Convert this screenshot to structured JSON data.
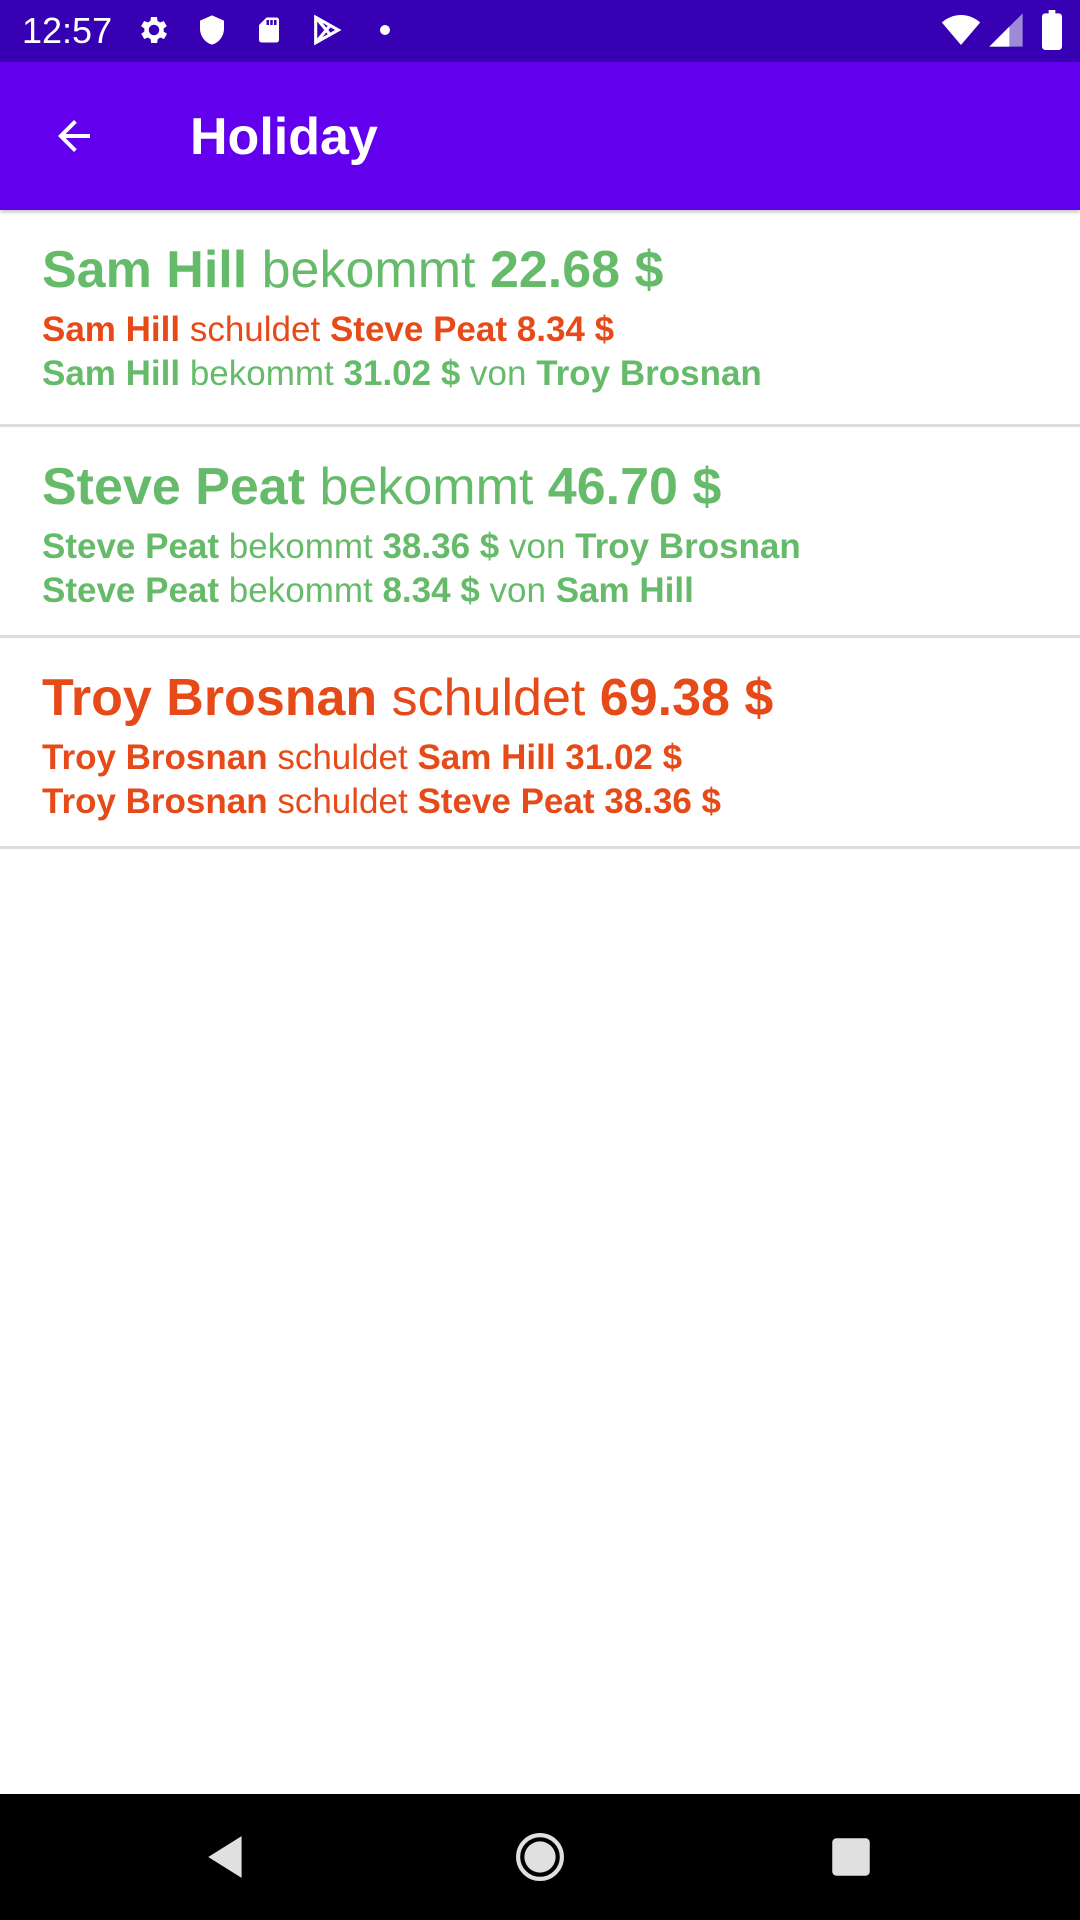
{
  "status_bar": {
    "time": "12:57",
    "left_icons": [
      "gear-icon",
      "shield-icon",
      "sd-card-icon",
      "play-store-icon",
      "dot-icon"
    ],
    "right_icons": [
      "wifi-icon",
      "cell-signal-icon",
      "battery-icon"
    ]
  },
  "app_bar": {
    "title": "Holiday",
    "back_icon": "arrow-back-icon",
    "background": "#6200ee"
  },
  "colors": {
    "receives": "#66bb6a",
    "owes": "#e64a19"
  },
  "items": [
    {
      "main": {
        "name": "Sam Hill",
        "verb": "bekommt",
        "amount": "22.68 $",
        "status": "receives"
      },
      "lines": [
        {
          "from": "Sam Hill",
          "verb": "schuldet",
          "to": "Steve Peat",
          "amount": "8.34 $",
          "status": "owes"
        },
        {
          "from": "Sam Hill",
          "verb": "bekommt",
          "amount": "31.02 $",
          "joiner": "von",
          "to": "Troy Brosnan",
          "status": "receives"
        }
      ]
    },
    {
      "main": {
        "name": "Steve Peat",
        "verb": "bekommt",
        "amount": "46.70 $",
        "status": "receives"
      },
      "lines": [
        {
          "from": "Steve Peat",
          "verb": "bekommt",
          "amount": "38.36 $",
          "joiner": "von",
          "to": "Troy Brosnan",
          "status": "receives"
        },
        {
          "from": "Steve Peat",
          "verb": "bekommt",
          "amount": "8.34 $",
          "joiner": "von",
          "to": "Sam Hill",
          "status": "receives"
        }
      ]
    },
    {
      "main": {
        "name": "Troy Brosnan",
        "verb": "schuldet",
        "amount": "69.38 $",
        "status": "owes"
      },
      "lines": [
        {
          "from": "Troy Brosnan",
          "verb": "schuldet",
          "to": "Sam Hill",
          "amount": "31.02 $",
          "status": "owes"
        },
        {
          "from": "Troy Brosnan",
          "verb": "schuldet",
          "to": "Steve Peat",
          "amount": "38.36 $",
          "status": "owes"
        }
      ]
    }
  ],
  "nav_bar": {
    "buttons": [
      "back-triangle-icon",
      "home-circle-icon",
      "recents-square-icon"
    ]
  }
}
